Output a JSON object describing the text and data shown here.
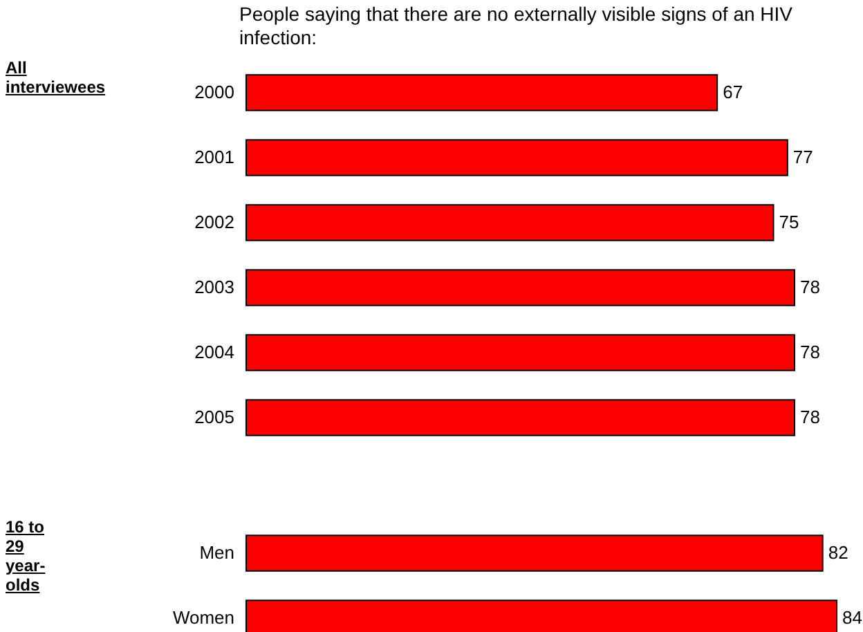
{
  "chart_data": [
    {
      "type": "bar",
      "orientation": "horizontal",
      "title": "People saying that there are no externally visible signs of an HIV infection:",
      "annotations": [
        "All interviewees"
      ],
      "categories": [
        "2000",
        "2001",
        "2002",
        "2003",
        "2004",
        "2005"
      ],
      "values": [
        67,
        77,
        75,
        78,
        78,
        78
      ],
      "color": "#ff0000",
      "data_labels": true
    },
    {
      "type": "bar",
      "orientation": "horizontal",
      "annotations": [
        "16 to 29 year-olds"
      ],
      "categories": [
        "Men",
        "Women"
      ],
      "values": [
        82,
        84
      ],
      "color": "#ff0000",
      "data_labels": true
    }
  ]
}
